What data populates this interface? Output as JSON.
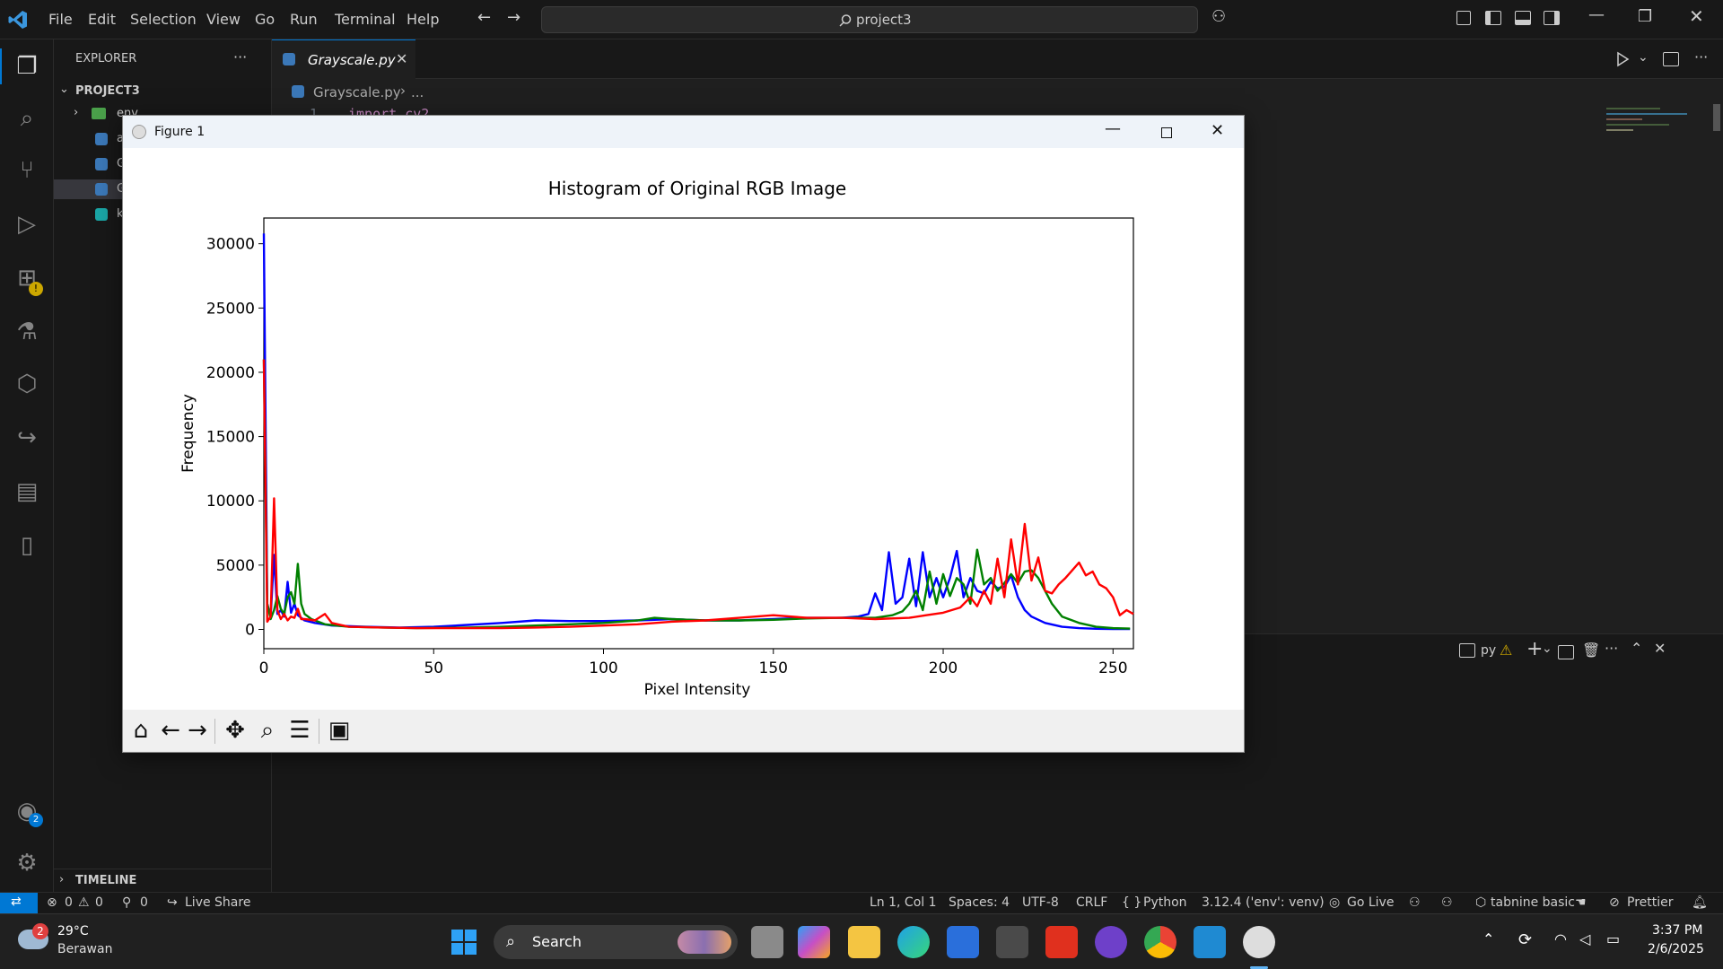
{
  "menu": [
    "File",
    "Edit",
    "Selection",
    "View",
    "Go",
    "Run",
    "Terminal",
    "Help"
  ],
  "command_center": "project3",
  "sidebar": {
    "title": "EXPLORER",
    "project": "PROJECT3",
    "items": [
      {
        "label": "env"
      },
      {
        "label": "a"
      },
      {
        "label": "G"
      },
      {
        "label": "G"
      },
      {
        "label": "k"
      }
    ],
    "timeline": "TIMELINE"
  },
  "editor": {
    "tab_label": "Grayscale.py",
    "breadcrumb_file": "Grayscale.py",
    "breadcrumb_more": "...",
    "line_number": "1",
    "code_line": "import cv2"
  },
  "panel": {
    "terminal_label": "py"
  },
  "status": {
    "errors": "0",
    "warnings": "0",
    "ports": "0",
    "live_share": "Live Share",
    "position": "Ln 1, Col 1",
    "spaces": "Spaces: 4",
    "encoding": "UTF-8",
    "eol": "CRLF",
    "language": "Python",
    "interpreter": "3.12.4 ('env': venv)",
    "go_live": "Go Live",
    "tabnine": "tabnine basic",
    "prettier": "Prettier"
  },
  "taskbar": {
    "weather_temp": "29°C",
    "weather_desc": "Berawan",
    "weather_badge": "2",
    "search": "Search",
    "time": "3:37 PM",
    "date": "2/6/2025"
  },
  "accounts_badge": "2",
  "figure": {
    "window_title": "Figure 1"
  },
  "chart_data": {
    "type": "line",
    "title": "Histogram of Original RGB Image",
    "xlabel": "Pixel Intensity",
    "ylabel": "Frequency",
    "xlim": [
      0,
      256
    ],
    "ylim": [
      -1500,
      32000
    ],
    "xticks": [
      0,
      50,
      100,
      150,
      200,
      250
    ],
    "yticks": [
      0,
      5000,
      10000,
      15000,
      20000,
      25000,
      30000
    ],
    "grid": false,
    "colors": {
      "blue": "#0000ff",
      "green": "#008000",
      "red": "#ff0000"
    },
    "series": [
      {
        "color": "blue",
        "points": [
          [
            0,
            30800
          ],
          [
            1,
            2000
          ],
          [
            2,
            1000
          ],
          [
            3,
            5800
          ],
          [
            4,
            1200
          ],
          [
            5,
            1500
          ],
          [
            6,
            1000
          ],
          [
            7,
            3700
          ],
          [
            8,
            1300
          ],
          [
            9,
            2000
          ],
          [
            10,
            1100
          ],
          [
            12,
            700
          ],
          [
            15,
            500
          ],
          [
            20,
            300
          ],
          [
            30,
            200
          ],
          [
            40,
            150
          ],
          [
            50,
            200
          ],
          [
            60,
            350
          ],
          [
            70,
            500
          ],
          [
            80,
            700
          ],
          [
            90,
            650
          ],
          [
            100,
            650
          ],
          [
            110,
            700
          ],
          [
            120,
            800
          ],
          [
            130,
            700
          ],
          [
            140,
            700
          ],
          [
            150,
            800
          ],
          [
            160,
            900
          ],
          [
            170,
            900
          ],
          [
            175,
            1000
          ],
          [
            178,
            1200
          ],
          [
            180,
            2800
          ],
          [
            182,
            1500
          ],
          [
            184,
            6000
          ],
          [
            186,
            2000
          ],
          [
            188,
            2500
          ],
          [
            190,
            5500
          ],
          [
            192,
            1800
          ],
          [
            194,
            6000
          ],
          [
            196,
            2500
          ],
          [
            198,
            4000
          ],
          [
            200,
            2500
          ],
          [
            202,
            4000
          ],
          [
            204,
            6100
          ],
          [
            206,
            2500
          ],
          [
            208,
            4000
          ],
          [
            210,
            3000
          ],
          [
            212,
            2800
          ],
          [
            214,
            3700
          ],
          [
            216,
            3200
          ],
          [
            218,
            3300
          ],
          [
            220,
            4200
          ],
          [
            222,
            2500
          ],
          [
            224,
            1500
          ],
          [
            226,
            1000
          ],
          [
            230,
            500
          ],
          [
            235,
            200
          ],
          [
            240,
            100
          ],
          [
            245,
            50
          ],
          [
            250,
            30
          ],
          [
            255,
            30
          ]
        ]
      },
      {
        "color": "green",
        "points": [
          [
            0,
            21000
          ],
          [
            1,
            2000
          ],
          [
            2,
            800
          ],
          [
            3,
            1500
          ],
          [
            4,
            2600
          ],
          [
            5,
            1600
          ],
          [
            6,
            1200
          ],
          [
            7,
            2500
          ],
          [
            8,
            2900
          ],
          [
            9,
            2000
          ],
          [
            10,
            5100
          ],
          [
            11,
            2000
          ],
          [
            12,
            1200
          ],
          [
            14,
            800
          ],
          [
            18,
            400
          ],
          [
            25,
            200
          ],
          [
            35,
            150
          ],
          [
            45,
            100
          ],
          [
            60,
            150
          ],
          [
            70,
            200
          ],
          [
            80,
            300
          ],
          [
            90,
            400
          ],
          [
            100,
            500
          ],
          [
            110,
            700
          ],
          [
            115,
            900
          ],
          [
            120,
            800
          ],
          [
            130,
            700
          ],
          [
            140,
            700
          ],
          [
            150,
            750
          ],
          [
            160,
            850
          ],
          [
            170,
            900
          ],
          [
            180,
            900
          ],
          [
            185,
            1100
          ],
          [
            188,
            1400
          ],
          [
            190,
            2000
          ],
          [
            192,
            3000
          ],
          [
            194,
            1500
          ],
          [
            196,
            4500
          ],
          [
            198,
            2000
          ],
          [
            200,
            4300
          ],
          [
            202,
            2600
          ],
          [
            204,
            4000
          ],
          [
            206,
            3500
          ],
          [
            208,
            2000
          ],
          [
            210,
            6200
          ],
          [
            212,
            3500
          ],
          [
            214,
            4000
          ],
          [
            216,
            3000
          ],
          [
            218,
            3600
          ],
          [
            220,
            4300
          ],
          [
            222,
            3600
          ],
          [
            224,
            4500
          ],
          [
            226,
            4600
          ],
          [
            228,
            4000
          ],
          [
            230,
            3000
          ],
          [
            232,
            2000
          ],
          [
            235,
            1000
          ],
          [
            240,
            500
          ],
          [
            245,
            200
          ],
          [
            250,
            100
          ],
          [
            255,
            60
          ]
        ]
      },
      {
        "color": "red",
        "points": [
          [
            0,
            21000
          ],
          [
            1,
            600
          ],
          [
            2,
            1000
          ],
          [
            3,
            10200
          ],
          [
            4,
            1500
          ],
          [
            5,
            800
          ],
          [
            6,
            1200
          ],
          [
            7,
            700
          ],
          [
            8,
            1000
          ],
          [
            9,
            900
          ],
          [
            10,
            1600
          ],
          [
            11,
            800
          ],
          [
            12,
            800
          ],
          [
            15,
            700
          ],
          [
            18,
            1200
          ],
          [
            20,
            500
          ],
          [
            25,
            200
          ],
          [
            35,
            150
          ],
          [
            45,
            100
          ],
          [
            60,
            100
          ],
          [
            70,
            100
          ],
          [
            80,
            150
          ],
          [
            90,
            200
          ],
          [
            100,
            300
          ],
          [
            110,
            400
          ],
          [
            120,
            600
          ],
          [
            130,
            700
          ],
          [
            140,
            900
          ],
          [
            150,
            1100
          ],
          [
            160,
            900
          ],
          [
            170,
            900
          ],
          [
            180,
            800
          ],
          [
            190,
            900
          ],
          [
            195,
            1100
          ],
          [
            200,
            1300
          ],
          [
            205,
            1700
          ],
          [
            208,
            2500
          ],
          [
            210,
            1800
          ],
          [
            212,
            3000
          ],
          [
            214,
            2000
          ],
          [
            216,
            5500
          ],
          [
            218,
            2500
          ],
          [
            220,
            7000
          ],
          [
            222,
            3500
          ],
          [
            224,
            8200
          ],
          [
            226,
            3800
          ],
          [
            228,
            5600
          ],
          [
            230,
            3000
          ],
          [
            232,
            2800
          ],
          [
            234,
            3500
          ],
          [
            236,
            4000
          ],
          [
            238,
            4600
          ],
          [
            240,
            5200
          ],
          [
            242,
            4200
          ],
          [
            244,
            4500
          ],
          [
            246,
            3500
          ],
          [
            248,
            3200
          ],
          [
            250,
            2500
          ],
          [
            252,
            1100
          ],
          [
            254,
            1500
          ],
          [
            256,
            1200
          ]
        ]
      }
    ]
  }
}
